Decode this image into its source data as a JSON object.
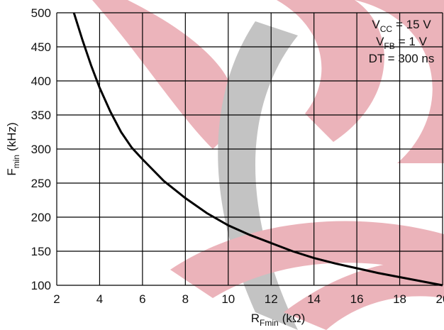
{
  "chart_data": {
    "type": "line",
    "x_label": {
      "main": "R",
      "sub": "Fmin",
      "unit": "(kΩ)"
    },
    "y_label": {
      "main": "F",
      "sub": "min",
      "unit": "(kHz)"
    },
    "annotations": [
      {
        "main": "V",
        "sub": "CC",
        "rest": "= 15 V"
      },
      {
        "main": "V",
        "sub": "FB",
        "rest": "= 1 V"
      },
      {
        "main": "DT = 300 ns"
      }
    ],
    "x": [
      2.8,
      3.2,
      3.6,
      4,
      4.5,
      5,
      5.5,
      6,
      7,
      8,
      9,
      10,
      11,
      12,
      13,
      14,
      15,
      16,
      17,
      18,
      19,
      20
    ],
    "values": [
      500,
      460,
      423,
      390,
      355,
      325,
      302,
      285,
      253,
      228,
      206,
      188,
      174,
      162,
      150,
      140,
      132,
      125,
      118,
      112,
      106,
      100
    ],
    "color": "#000000",
    "xlim": [
      2,
      20
    ],
    "ylim": [
      100,
      500
    ],
    "xticks": [
      2,
      4,
      6,
      8,
      10,
      12,
      14,
      16,
      18,
      20
    ],
    "yticks": [
      100,
      150,
      200,
      250,
      300,
      350,
      400,
      450,
      500
    ],
    "grid": true
  }
}
